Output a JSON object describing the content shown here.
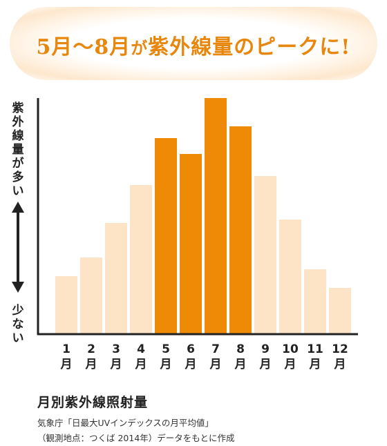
{
  "headline": {
    "part1": "5月〜8月",
    "part2": "が",
    "part3": "紫外線量のピークに!"
  },
  "axis_high_label": "紫外線量が多い",
  "axis_low_label": "少ない",
  "colors": {
    "highlight": "#ee8a06",
    "normal": "#fde4c6",
    "axis": "#222222"
  },
  "chart_data": {
    "type": "bar",
    "categories": [
      "1\n月",
      "2\n月",
      "3\n月",
      "4\n月",
      "5\n月",
      "6\n月",
      "7\n月",
      "8\n月",
      "9\n月",
      "10\n月",
      "11\n月",
      "12\n月"
    ],
    "values": [
      84,
      111,
      161,
      216,
      284,
      261,
      342,
      301,
      229,
      166,
      94,
      67
    ],
    "highlighted": [
      false,
      false,
      false,
      false,
      true,
      true,
      true,
      true,
      false,
      false,
      false,
      false
    ],
    "ylim": [
      0,
      342
    ],
    "title": "月別紫外線照射量",
    "xlabel": "",
    "ylabel": "",
    "grid": false
  },
  "source_line1": "気象庁「日最大UVインデックスの月平均値」",
  "source_line2": "（観測地点：つくば 2014年）データをもとに作成"
}
